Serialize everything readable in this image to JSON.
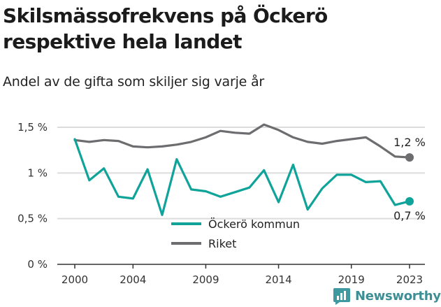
{
  "header": {
    "title": "Skilsmässofrekvens på Öckerö respektive hela landet",
    "subtitle": "Andel av de gifta som skiljer sig varje år"
  },
  "brand": {
    "name": "Newsworthy",
    "color": "#3e9aa0"
  },
  "chart_data": {
    "type": "line",
    "x": [
      2000,
      2001,
      2002,
      2003,
      2004,
      2005,
      2006,
      2007,
      2008,
      2009,
      2010,
      2011,
      2012,
      2013,
      2014,
      2015,
      2016,
      2017,
      2018,
      2019,
      2020,
      2021,
      2022,
      2023
    ],
    "series": [
      {
        "name": "Öckerö kommun",
        "color": "#0fa39a",
        "values": [
          1.37,
          0.92,
          1.05,
          0.74,
          0.72,
          1.04,
          0.54,
          1.15,
          0.82,
          0.8,
          0.74,
          0.79,
          0.84,
          1.03,
          0.68,
          1.09,
          0.6,
          0.83,
          0.98,
          0.98,
          0.9,
          0.91,
          0.65,
          0.69
        ],
        "end_label": "0,7 %"
      },
      {
        "name": "Riket",
        "color": "#6d6d70",
        "values": [
          1.36,
          1.34,
          1.36,
          1.35,
          1.29,
          1.28,
          1.29,
          1.31,
          1.34,
          1.39,
          1.46,
          1.44,
          1.43,
          1.53,
          1.47,
          1.39,
          1.34,
          1.32,
          1.35,
          1.37,
          1.39,
          1.29,
          1.18,
          1.17
        ],
        "end_label": "1,2 %"
      }
    ],
    "y_ticks": [
      0,
      0.5,
      1,
      1.5
    ],
    "y_tick_labels": [
      "0 %",
      "0,5 %",
      "1 %",
      "1,5 %"
    ],
    "x_ticks": [
      2000,
      2004,
      2009,
      2014,
      2019,
      2023
    ],
    "x_tick_labels": [
      "2000",
      "2004",
      "2009",
      "2014",
      "2019",
      "2023"
    ],
    "ylim": [
      0,
      1.5
    ],
    "xlim": [
      2000,
      2023
    ],
    "grid": "horizontal",
    "legend": "bottom-center"
  }
}
